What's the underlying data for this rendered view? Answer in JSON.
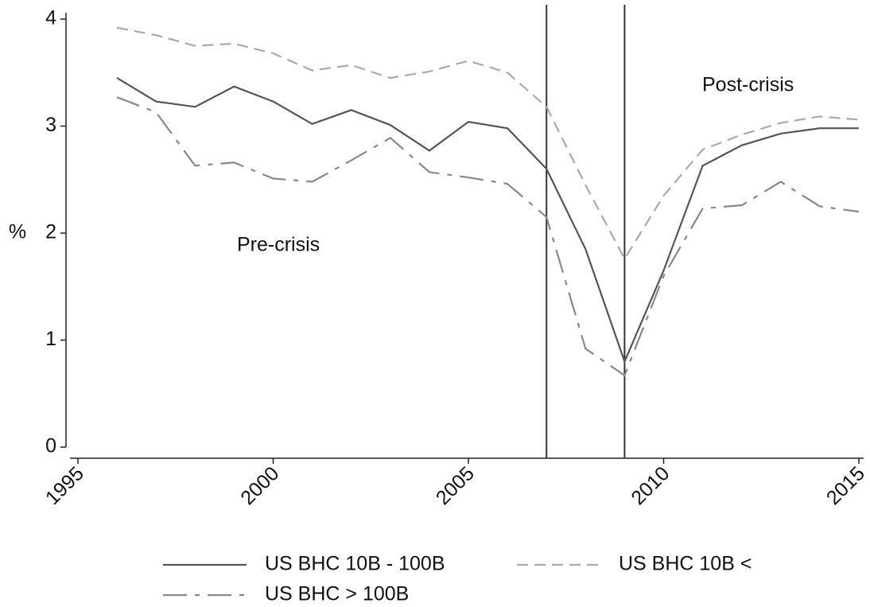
{
  "chart_data": {
    "type": "line",
    "y_label": "%",
    "annotations": [
      "Pre-crisis",
      "Post-crisis"
    ],
    "x": [
      1996,
      1997,
      1998,
      1999,
      2000,
      2001,
      2002,
      2003,
      2004,
      2005,
      2006,
      2007,
      2008,
      2009,
      2010,
      2011,
      2012,
      2013,
      2014,
      2015
    ],
    "series": [
      {
        "name": "US BHC 10B - 100B",
        "color": "#555555",
        "dash": "solid",
        "values": [
          3.45,
          3.23,
          3.18,
          3.37,
          3.23,
          3.02,
          3.15,
          3.01,
          2.77,
          3.04,
          2.98,
          2.6,
          1.85,
          0.8,
          1.65,
          2.63,
          2.82,
          2.93,
          2.98,
          2.98
        ]
      },
      {
        "name": "US BHC 10B <",
        "color": "#aaaaaa",
        "dash": "dash",
        "values": [
          3.92,
          3.85,
          3.75,
          3.77,
          3.68,
          3.52,
          3.57,
          3.45,
          3.51,
          3.61,
          3.5,
          3.18,
          2.45,
          1.76,
          2.35,
          2.78,
          2.92,
          3.03,
          3.09,
          3.06
        ]
      },
      {
        "name": "US BHC > 100B",
        "color": "#888888",
        "dash": "dashdot",
        "values": [
          3.27,
          3.13,
          2.63,
          2.66,
          2.51,
          2.48,
          2.68,
          2.89,
          2.57,
          2.52,
          2.46,
          2.15,
          0.92,
          0.67,
          1.6,
          2.23,
          2.26,
          2.48,
          2.25,
          2.2
        ]
      }
    ],
    "vlines": [
      2007,
      2009
    ],
    "xlim": [
      1995,
      2015
    ],
    "xticks": [
      1995,
      2000,
      2005,
      2010,
      2015
    ],
    "ylim": [
      0,
      4
    ],
    "yticks": [
      0,
      1,
      2,
      3,
      4
    ],
    "grid": false
  }
}
